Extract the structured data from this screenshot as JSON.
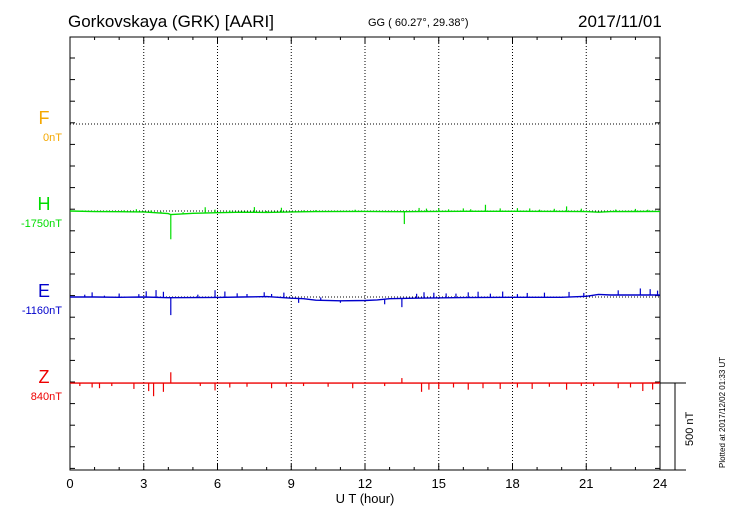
{
  "header": {
    "title": "Gorkovskaya (GRK)  [AARI]",
    "coords": "GG ( 60.27°,  29.38°)",
    "date": "2017/11/01"
  },
  "components": [
    {
      "letter": "F",
      "baseline": "0nT",
      "color": "#f5a800"
    },
    {
      "letter": "H",
      "baseline": "-1750nT",
      "color": "#00dd00"
    },
    {
      "letter": "E",
      "baseline": "-1160nT",
      "color": "#0000cc"
    },
    {
      "letter": "Z",
      "baseline": "840nT",
      "color": "#ee0000"
    }
  ],
  "scale_label": "500 nT",
  "plotted_note": "Plotted at 2017/12/02 01:33 UT",
  "chart_data": {
    "type": "line",
    "xlabel": "U T (hour)",
    "xlim": [
      0,
      24
    ],
    "xticks": [
      "0",
      "3",
      "6",
      "9",
      "12",
      "15",
      "18",
      "21",
      "24"
    ],
    "scale_bar_nT": 500,
    "grid": "dotted",
    "series": [
      {
        "name": "F",
        "baseline_nT": 0,
        "points": []
      },
      {
        "name": "H",
        "baseline_nT": -1750,
        "points": [
          [
            0,
            0
          ],
          [
            1,
            -4
          ],
          [
            2,
            -5
          ],
          [
            3,
            -6
          ],
          [
            4,
            -18
          ],
          [
            4.1,
            -25
          ],
          [
            5,
            -16
          ],
          [
            6,
            -12
          ],
          [
            7,
            -8
          ],
          [
            8,
            -10
          ],
          [
            9,
            -6
          ],
          [
            10,
            -4
          ],
          [
            12,
            -3
          ],
          [
            13.6,
            -5
          ],
          [
            14,
            -4
          ],
          [
            16,
            -2
          ],
          [
            18,
            -2
          ],
          [
            20,
            -3
          ],
          [
            21,
            -4
          ],
          [
            21.5,
            -8
          ],
          [
            22,
            -4
          ],
          [
            24,
            -3
          ]
        ],
        "spikes": [
          [
            0.5,
            6
          ],
          [
            1,
            6
          ],
          [
            1.5,
            8
          ],
          [
            2.2,
            10
          ],
          [
            2.7,
            18
          ],
          [
            3.3,
            14
          ],
          [
            3.7,
            10
          ],
          [
            4.1,
            -170
          ],
          [
            4.6,
            12
          ],
          [
            5.5,
            40
          ],
          [
            5.9,
            22
          ],
          [
            6.5,
            14
          ],
          [
            7.5,
            36
          ],
          [
            8,
            10
          ],
          [
            8.6,
            30
          ],
          [
            9.5,
            8
          ],
          [
            10,
            10
          ],
          [
            11.6,
            12
          ],
          [
            13.6,
            -85
          ],
          [
            14.2,
            25
          ],
          [
            14.5,
            20
          ],
          [
            15,
            22
          ],
          [
            15.4,
            14
          ],
          [
            16,
            20
          ],
          [
            16.3,
            14
          ],
          [
            16.9,
            45
          ],
          [
            17.5,
            20
          ],
          [
            18.2,
            22
          ],
          [
            18.7,
            20
          ],
          [
            19.1,
            12
          ],
          [
            19.7,
            18
          ],
          [
            20.2,
            35
          ],
          [
            20.8,
            20
          ],
          [
            22.2,
            14
          ],
          [
            23,
            18
          ],
          [
            23.5,
            12
          ]
        ]
      },
      {
        "name": "E",
        "baseline_nT": -1160,
        "points": [
          [
            0,
            0
          ],
          [
            1,
            0
          ],
          [
            2,
            -2
          ],
          [
            3,
            0
          ],
          [
            4,
            -5
          ],
          [
            5,
            -4
          ],
          [
            6,
            -3
          ],
          [
            7,
            0
          ],
          [
            8,
            3
          ],
          [
            9,
            -8
          ],
          [
            9.5,
            -12
          ],
          [
            10,
            -22
          ],
          [
            11,
            -26
          ],
          [
            12,
            -24
          ],
          [
            12.5,
            -20
          ],
          [
            13,
            -12
          ],
          [
            14,
            -8
          ],
          [
            16,
            -4
          ],
          [
            18,
            -2
          ],
          [
            20,
            -2
          ],
          [
            21,
            5
          ],
          [
            21.5,
            18
          ],
          [
            22,
            14
          ],
          [
            24,
            14
          ]
        ],
        "spikes": [
          [
            0.6,
            16
          ],
          [
            0.9,
            32
          ],
          [
            1.4,
            10
          ],
          [
            2,
            26
          ],
          [
            2.8,
            20
          ],
          [
            3.1,
            40
          ],
          [
            3.5,
            50
          ],
          [
            3.8,
            40
          ],
          [
            4.1,
            -120
          ],
          [
            5.2,
            20
          ],
          [
            5.9,
            50
          ],
          [
            6.3,
            40
          ],
          [
            6.8,
            26
          ],
          [
            7.2,
            20
          ],
          [
            7.9,
            30
          ],
          [
            8.2,
            20
          ],
          [
            8.7,
            35
          ],
          [
            9.3,
            -30
          ],
          [
            10.2,
            20
          ],
          [
            11,
            -14
          ],
          [
            12.8,
            -35
          ],
          [
            13.5,
            -60
          ],
          [
            14.1,
            30
          ],
          [
            14.4,
            40
          ],
          [
            14.8,
            36
          ],
          [
            15.3,
            30
          ],
          [
            15.7,
            28
          ],
          [
            16.2,
            36
          ],
          [
            16.6,
            40
          ],
          [
            17.1,
            26
          ],
          [
            17.6,
            40
          ],
          [
            18.2,
            22
          ],
          [
            18.6,
            30
          ],
          [
            19.3,
            32
          ],
          [
            20.3,
            35
          ],
          [
            20.9,
            24
          ],
          [
            22.3,
            32
          ],
          [
            23.2,
            45
          ],
          [
            23.6,
            40
          ],
          [
            23.9,
            30
          ]
        ]
      },
      {
        "name": "Z",
        "baseline_nT": 840,
        "points": [
          [
            0,
            -1
          ],
          [
            2,
            -1
          ],
          [
            4,
            -1
          ],
          [
            6,
            -1
          ],
          [
            8,
            -1
          ],
          [
            10,
            -1
          ],
          [
            12,
            -1
          ],
          [
            14,
            -1
          ],
          [
            16,
            -1
          ],
          [
            18,
            -1
          ],
          [
            20,
            -1
          ],
          [
            22,
            -1
          ],
          [
            24,
            0
          ]
        ],
        "spikes": [
          [
            0.4,
            -20
          ],
          [
            0.9,
            -30
          ],
          [
            1.2,
            -35
          ],
          [
            1.7,
            -20
          ],
          [
            2.6,
            -40
          ],
          [
            3.2,
            -55
          ],
          [
            3.4,
            -90
          ],
          [
            3.8,
            -60
          ],
          [
            4.1,
            75
          ],
          [
            5.3,
            -20
          ],
          [
            5.9,
            -50
          ],
          [
            6.5,
            -30
          ],
          [
            7.2,
            -25
          ],
          [
            8.2,
            -35
          ],
          [
            8.8,
            -25
          ],
          [
            9.5,
            -20
          ],
          [
            10.5,
            -25
          ],
          [
            11.5,
            -35
          ],
          [
            12.8,
            -20
          ],
          [
            13.5,
            35
          ],
          [
            14.3,
            -60
          ],
          [
            14.6,
            -45
          ],
          [
            15,
            -40
          ],
          [
            15.6,
            -30
          ],
          [
            16.2,
            -45
          ],
          [
            16.8,
            -35
          ],
          [
            17.5,
            -40
          ],
          [
            18.2,
            -30
          ],
          [
            18.8,
            -40
          ],
          [
            19.5,
            -25
          ],
          [
            20.2,
            -45
          ],
          [
            20.8,
            -20
          ],
          [
            21.3,
            -20
          ],
          [
            22.3,
            -35
          ],
          [
            22.8,
            -30
          ],
          [
            23.3,
            -55
          ],
          [
            23.7,
            -45
          ]
        ]
      }
    ]
  }
}
